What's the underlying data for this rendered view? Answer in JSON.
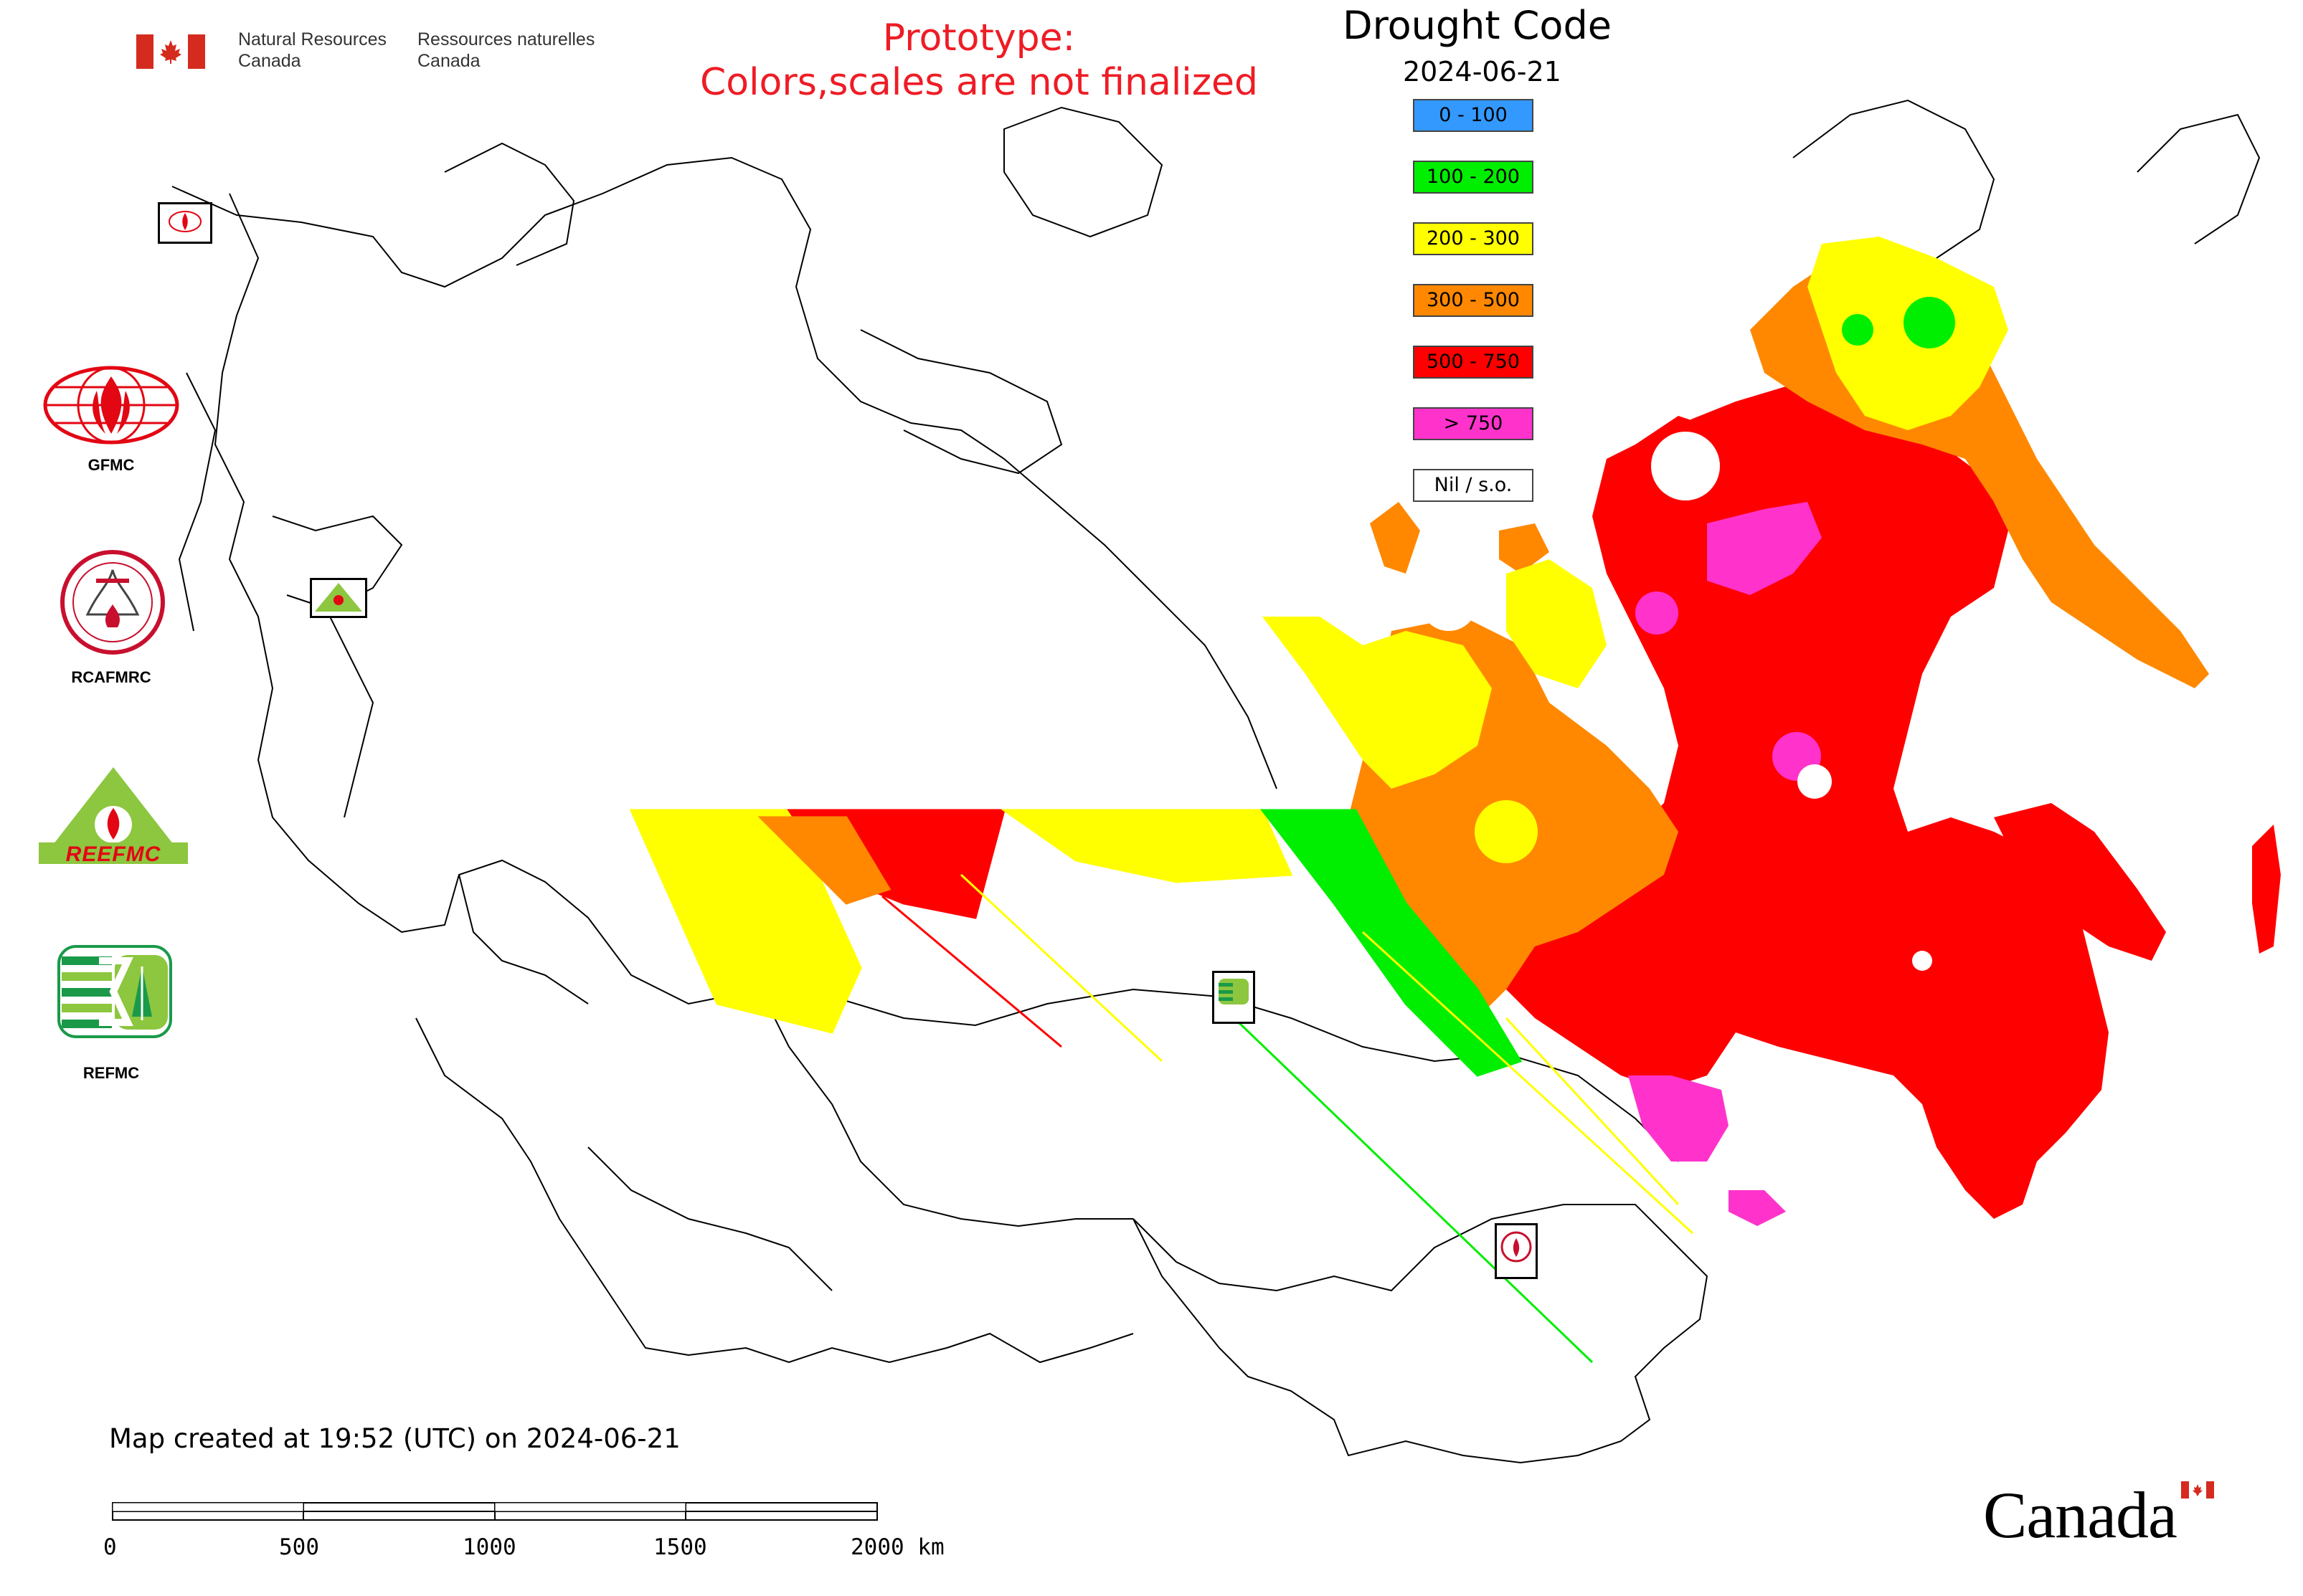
{
  "header": {
    "org_en_line1": "Natural Resources",
    "org_en_line2": "Canada",
    "org_fr_line1": "Ressources naturelles",
    "org_fr_line2": "Canada",
    "prototype_line1": "Prototype:",
    "prototype_line2": "Colors,scales are not finalized"
  },
  "legend": {
    "title": "Drought Code",
    "date": "2024-06-21",
    "items": [
      {
        "label": "0 - 100",
        "color": "#3399ff"
      },
      {
        "label": "100 - 200",
        "color": "#00ee00"
      },
      {
        "label": "200 - 300",
        "color": "#ffff00"
      },
      {
        "label": "300 - 500",
        "color": "#ff8800"
      },
      {
        "label": "500 - 750",
        "color": "#ff0000"
      },
      {
        "label": "> 750",
        "color": "#ff33cc"
      },
      {
        "label": "Nil / s.o.",
        "color": "#ffffff"
      }
    ]
  },
  "logos": {
    "gfmc_label": "GFMC",
    "rcafmrc_label": "RCAFMRC",
    "reefmc_text": "REEFMC",
    "refmc_label": "REFMC"
  },
  "footer": {
    "created": "Map created at 19:52 (UTC) on 2024-06-21",
    "scale_ticks": [
      "0",
      "500",
      "1000",
      "1500",
      "2000 km"
    ],
    "wordmark": "Canada"
  },
  "colors": {
    "red": "#ff0000",
    "orange": "#ff8800",
    "yellow": "#ffff00",
    "green": "#00ee00",
    "magenta": "#ff33cc",
    "prototype_text": "#ee1c25",
    "flag_red": "#d52b1e"
  }
}
